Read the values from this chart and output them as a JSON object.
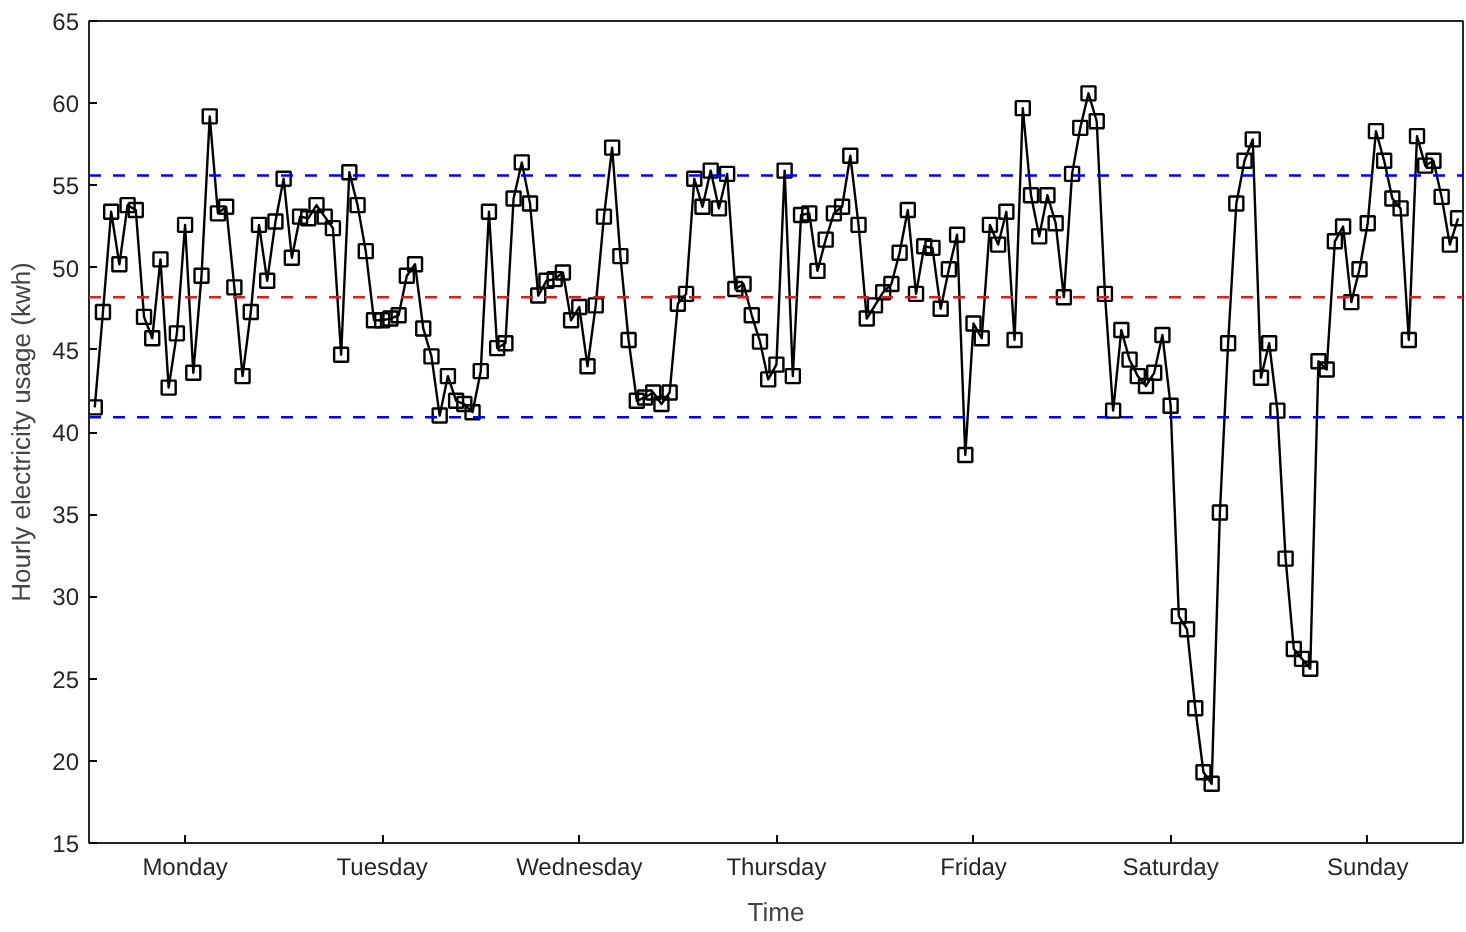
{
  "chart_data": {
    "type": "line",
    "xlabel": "Time",
    "ylabel": "Hourly electricity usage (kwh)",
    "categories": [
      null,
      null,
      null,
      null,
      null,
      null,
      null,
      null,
      null,
      null,
      null,
      "Monday",
      null,
      null,
      null,
      null,
      null,
      null,
      null,
      null,
      null,
      null,
      null,
      null,
      null,
      null,
      null,
      null,
      null,
      null,
      null,
      null,
      null,
      null,
      null,
      "Tuesday",
      null,
      null,
      null,
      null,
      null,
      null,
      null,
      null,
      null,
      null,
      null,
      null,
      null,
      null,
      null,
      null,
      null,
      null,
      null,
      null,
      null,
      null,
      null,
      "Wednesday",
      null,
      null,
      null,
      null,
      null,
      null,
      null,
      null,
      null,
      null,
      null,
      null,
      null,
      null,
      null,
      null,
      null,
      null,
      null,
      null,
      null,
      null,
      null,
      "Thursday",
      null,
      null,
      null,
      null,
      null,
      null,
      null,
      null,
      null,
      null,
      null,
      null,
      null,
      null,
      null,
      null,
      null,
      null,
      null,
      null,
      null,
      null,
      null,
      "Friday",
      null,
      null,
      null,
      null,
      null,
      null,
      null,
      null,
      null,
      null,
      null,
      null,
      null,
      null,
      null,
      null,
      null,
      null,
      null,
      null,
      null,
      null,
      null,
      "Saturday",
      null,
      null,
      null,
      null,
      null,
      null,
      null,
      null,
      null,
      null,
      null,
      null,
      null,
      null,
      null,
      null,
      null,
      null,
      null,
      null,
      null,
      null,
      null,
      "Sunday",
      null,
      null,
      null,
      null,
      null,
      null,
      null,
      null,
      null,
      null,
      null
    ],
    "series": [
      {
        "color": "#000000",
        "values": [
          41.5,
          47.3,
          53.4,
          50.2,
          53.8,
          53.5,
          47,
          45.7,
          50.5,
          42.7,
          46,
          52.6,
          43.6,
          49.5,
          59.2,
          53.3,
          53.7,
          48.8,
          43.4,
          47.3,
          52.6,
          49.2,
          52.8,
          55.4,
          50.6,
          53.1,
          53,
          53.8,
          53.1,
          52.4,
          44.7,
          55.8,
          53.8,
          51,
          46.8,
          46.8,
          46.9,
          47.1,
          49.5,
          50.2,
          46.3,
          44.6,
          41,
          43.4,
          41.9,
          41.7,
          41.2,
          43.7,
          53.4,
          45.1,
          45.4,
          54.2,
          56.4,
          53.9,
          48.3,
          49.2,
          49.3,
          49.7,
          46.8,
          47.6,
          44,
          47.7,
          53.1,
          57.3,
          50.7,
          45.6,
          41.9,
          42.1,
          42.4,
          41.7,
          42.4,
          47.8,
          48.4,
          55.4,
          53.7,
          55.9,
          53.6,
          55.7,
          48.7,
          49,
          47.1,
          45.5,
          43.2,
          44.1,
          55.9,
          43.4,
          53.2,
          53.3,
          49.8,
          51.7,
          53.3,
          53.7,
          56.8,
          52.6,
          46.9,
          47.7,
          48.5,
          49,
          50.9,
          53.5,
          48.4,
          51.3,
          51.2,
          47.5,
          49.9,
          52,
          38.6,
          46.6,
          45.7,
          52.6,
          51.4,
          53.4,
          45.6,
          59.7,
          54.4,
          51.9,
          54.4,
          52.7,
          48.2,
          55.7,
          58.5,
          60.6,
          58.9,
          48.4,
          41.3,
          46.2,
          44.4,
          43.4,
          42.8,
          43.6,
          45.9,
          41.6,
          28.8,
          28,
          23.2,
          19.3,
          18.6,
          35.1,
          45.4,
          53.9,
          56.5,
          57.8,
          43.3,
          45.4,
          41.3,
          32.3,
          26.8,
          26.2,
          25.6,
          44.3,
          43.8,
          51.6,
          52.5,
          47.9,
          49.9,
          52.7,
          58.3,
          56.5,
          54.2,
          53.6,
          45.6,
          58,
          56.2,
          56.5,
          54.3,
          51.4,
          53
        ]
      }
    ],
    "ylim": [
      15,
      65
    ],
    "yticks": [
      15,
      20,
      25,
      30,
      35,
      40,
      45,
      50,
      55,
      60,
      65
    ],
    "ref_lines": [
      {
        "axis": "y",
        "value": 55.6,
        "color": "#0000ff",
        "line_style": "dashed"
      },
      {
        "axis": "y",
        "value": 48.2,
        "color": "#d62020",
        "line_style": "dashed"
      },
      {
        "axis": "y",
        "value": 40.9,
        "color": "#0000ff",
        "line_style": "dashed"
      }
    ],
    "grid": false,
    "marker": "square",
    "line_style": "solid"
  }
}
